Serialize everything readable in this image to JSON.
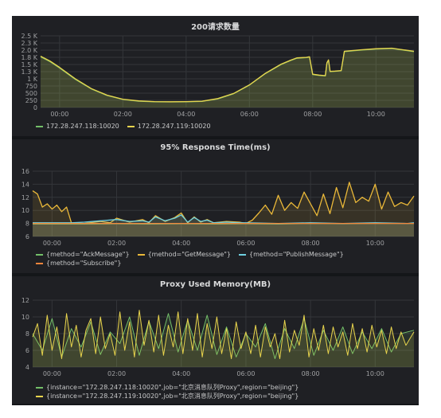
{
  "panels": [
    {
      "title": "200请求数量",
      "legend": [
        {
          "name": "172.28.247.118:10020",
          "color": "#73bf69"
        },
        {
          "name": "172.28.247.119:10020",
          "color": "#e8d44d"
        }
      ]
    },
    {
      "title": "95% Response Time(ms)",
      "legend": [
        {
          "name": "{method=\"AckMessage\"}",
          "color": "#73bf69"
        },
        {
          "name": "{method=\"GetMessage\"}",
          "color": "#eab839"
        },
        {
          "name": "{method=\"PublishMessage\"}",
          "color": "#6ed0e0"
        },
        {
          "name": "{method=\"Subscribe\"}",
          "color": "#ef843c"
        }
      ]
    },
    {
      "title": "Proxy Used Memory(MB)",
      "legend": [
        {
          "name": "{instance=\"172.28.247.118:10020\",job=\"北京消息队列Proxy\",region=\"beijing\"}",
          "color": "#73bf69"
        },
        {
          "name": "{instance=\"172.28.247.119:10020\",job=\"北京消息队列Proxy\",region=\"beijing\"}",
          "color": "#e8d44d"
        }
      ]
    }
  ],
  "chart_data": [
    {
      "type": "line",
      "title": "200请求数量",
      "x_unit": "hour",
      "x_ticks": [
        "00:00",
        "02:00",
        "04:00",
        "06:00",
        "08:00",
        "10:00"
      ],
      "x_range": [
        -0.6,
        11.2
      ],
      "y_ticks": [
        "0",
        "250",
        "500",
        "750",
        "1 K",
        "1.3 K",
        "1.5 K",
        "1.8 K",
        "2.0 K",
        "2.3 K",
        "2.5 K"
      ],
      "y_tick_values": [
        0,
        250,
        500,
        750,
        1000,
        1250,
        1500,
        1750,
        2000,
        2250,
        2500
      ],
      "ylim": [
        0,
        2500
      ],
      "grid": true,
      "legend_position": "bottom-left",
      "series": [
        {
          "name": "172.28.247.118:10020",
          "color": "#73bf69",
          "x": [
            -0.6,
            -0.3,
            0,
            0.5,
            1,
            1.5,
            2,
            2.5,
            3,
            3.5,
            4,
            4.5,
            5,
            5.5,
            6,
            6.5,
            7,
            7.3,
            7.5,
            7.8,
            7.9,
            8.0,
            8.2,
            8.4,
            8.45,
            8.5,
            8.55,
            8.7,
            8.9,
            9.0,
            9.5,
            10,
            10.5,
            11.2
          ],
          "y": [
            1770,
            1600,
            1380,
            980,
            650,
            420,
            280,
            220,
            200,
            195,
            200,
            215,
            300,
            480,
            780,
            1180,
            1500,
            1640,
            1720,
            1740,
            1760,
            1150,
            1120,
            1100,
            1550,
            1650,
            1250,
            1260,
            1280,
            1950,
            2000,
            2040,
            2060,
            1950
          ]
        },
        {
          "name": "172.28.247.119:10020",
          "color": "#e8d44d",
          "x": [
            -0.6,
            -0.3,
            0,
            0.5,
            1,
            1.5,
            2,
            2.5,
            3,
            3.5,
            4,
            4.5,
            5,
            5.5,
            6,
            6.5,
            7,
            7.3,
            7.5,
            7.8,
            7.9,
            8.0,
            8.2,
            8.4,
            8.45,
            8.5,
            8.55,
            8.7,
            8.9,
            9.0,
            9.5,
            10,
            10.5,
            11.2
          ],
          "y": [
            1790,
            1620,
            1400,
            1000,
            660,
            430,
            290,
            230,
            205,
            200,
            205,
            220,
            310,
            490,
            790,
            1190,
            1510,
            1650,
            1730,
            1750,
            1770,
            1160,
            1130,
            1110,
            1560,
            1660,
            1260,
            1270,
            1290,
            1960,
            2010,
            2050,
            2070,
            1960
          ]
        }
      ]
    },
    {
      "type": "line",
      "title": "95% Response Time(ms)",
      "x_unit": "hour",
      "x_ticks": [
        "00:00",
        "02:00",
        "04:00",
        "06:00",
        "08:00",
        "10:00"
      ],
      "x_range": [
        -0.6,
        11.2
      ],
      "y_ticks": [
        "6",
        "8",
        "10",
        "12",
        "14",
        "16"
      ],
      "y_tick_values": [
        6,
        8,
        10,
        12,
        14,
        16
      ],
      "ylim": [
        6,
        16
      ],
      "grid": true,
      "legend_position": "bottom-left",
      "series": [
        {
          "name": "{method=\"AckMessage\"}",
          "color": "#73bf69",
          "x": [
            -0.6,
            1,
            2,
            3,
            4,
            5,
            6,
            7,
            8,
            9,
            10,
            11.2
          ],
          "y": [
            7.9,
            7.9,
            7.95,
            7.9,
            7.95,
            7.9,
            7.95,
            7.9,
            8.0,
            7.95,
            8.0,
            8.0
          ]
        },
        {
          "name": "{method=\"GetMessage\"}",
          "color": "#eab839",
          "x": [
            -0.6,
            -0.45,
            -0.3,
            -0.15,
            0,
            0.15,
            0.3,
            0.45,
            0.6,
            1,
            1.5,
            1.8,
            2,
            2.4,
            2.8,
            3.0,
            3.2,
            3.5,
            3.8,
            4.0,
            4.2,
            4.4,
            4.6,
            4.8,
            5,
            5.4,
            5.8,
            6.0,
            6.2,
            6.4,
            6.6,
            6.8,
            7.0,
            7.2,
            7.4,
            7.6,
            7.8,
            8.0,
            8.2,
            8.4,
            8.6,
            8.8,
            9.0,
            9.2,
            9.4,
            9.6,
            9.8,
            10.0,
            10.2,
            10.4,
            10.6,
            10.8,
            11.0,
            11.2
          ],
          "y": [
            13,
            12.5,
            10.5,
            11,
            10.2,
            10.8,
            9.8,
            10.5,
            8.1,
            8.0,
            8.3,
            8.1,
            8.8,
            8.2,
            8.6,
            8.1,
            9.2,
            8.3,
            8.9,
            9.6,
            8.1,
            9.0,
            8.2,
            8.6,
            8.1,
            8.3,
            8.2,
            8.0,
            8.5,
            9.6,
            10.8,
            9.4,
            12.3,
            10.0,
            11.2,
            10.3,
            12.8,
            11.0,
            9.2,
            12.5,
            9.5,
            13.5,
            10.4,
            14.3,
            11.2,
            12.0,
            11.4,
            14.0,
            10.2,
            12.8,
            10.6,
            11.2,
            10.8,
            12.2
          ]
        },
        {
          "name": "{method=\"PublishMessage\"}",
          "color": "#6ed0e0",
          "x": [
            -0.6,
            0.6,
            1,
            1.5,
            2,
            2.4,
            2.8,
            3.0,
            3.2,
            3.5,
            3.8,
            4.0,
            4.2,
            4.4,
            4.6,
            4.8,
            5,
            5.4,
            5.8,
            6.0,
            7,
            8,
            9,
            10,
            11,
            11.2
          ],
          "y": [
            8.1,
            8.1,
            8.2,
            8.4,
            8.6,
            8.3,
            8.4,
            8.2,
            9.0,
            8.4,
            8.8,
            9.3,
            8.2,
            8.9,
            8.3,
            8.5,
            8.1,
            8.2,
            8.1,
            8.1,
            8.0,
            8.1,
            8.0,
            8.1,
            8.0,
            8.1
          ]
        },
        {
          "name": "{method=\"Subscribe\"}",
          "color": "#ef843c",
          "x": [
            -0.6,
            1,
            2,
            3,
            4,
            5,
            6,
            7,
            8,
            9,
            10,
            11.2
          ],
          "y": [
            8.0,
            8.0,
            8.0,
            8.0,
            8.0,
            8.0,
            8.0,
            8.0,
            8.0,
            8.0,
            8.0,
            8.0
          ]
        }
      ]
    },
    {
      "type": "line",
      "title": "Proxy Used Memory(MB)",
      "x_unit": "hour",
      "x_ticks": [
        "00:00",
        "02:00",
        "04:00",
        "06:00",
        "08:00",
        "10:00"
      ],
      "x_range": [
        -0.6,
        11.2
      ],
      "y_ticks": [
        "4",
        "6",
        "8",
        "10",
        "12"
      ],
      "y_tick_values": [
        4,
        6,
        8,
        10,
        12
      ],
      "ylim": [
        4,
        12
      ],
      "grid": true,
      "legend_position": "bottom-left",
      "series": [
        {
          "name": "{instance=\"172.28.247.118:10020\",job=\"北京消息队列Proxy\",region=\"beijing\"}",
          "color": "#73bf69",
          "x": [
            -0.6,
            -0.3,
            0,
            0.3,
            0.6,
            0.9,
            1.2,
            1.5,
            1.8,
            2.1,
            2.4,
            2.7,
            3.0,
            3.3,
            3.6,
            3.9,
            4.2,
            4.5,
            4.8,
            5.1,
            5.4,
            5.7,
            6.0,
            6.3,
            6.6,
            6.9,
            7.2,
            7.5,
            7.8,
            8.1,
            8.4,
            8.7,
            9.0,
            9.3,
            9.6,
            9.9,
            10.2,
            10.5,
            10.8,
            11.2
          ],
          "y": [
            8.0,
            6.0,
            9.8,
            5.2,
            8.6,
            6.4,
            9.4,
            5.5,
            8.2,
            6.8,
            10.0,
            5.4,
            9.5,
            6.2,
            10.4,
            5.8,
            9.6,
            6.0,
            10.2,
            5.5,
            8.8,
            5.2,
            8.0,
            6.4,
            9.2,
            5.0,
            8.6,
            6.2,
            9.8,
            5.4,
            8.4,
            6.0,
            8.8,
            5.6,
            8.2,
            6.2,
            8.6,
            5.8,
            8.0,
            8.4
          ]
        },
        {
          "name": "{instance=\"172.28.247.119:10020\",job=\"北京消息队列Proxy\",region=\"beijing\"}",
          "color": "#e8d44d",
          "x": [
            -0.6,
            -0.45,
            -0.3,
            -0.15,
            0,
            0.15,
            0.3,
            0.45,
            0.6,
            0.75,
            0.9,
            1.05,
            1.2,
            1.35,
            1.5,
            1.65,
            1.8,
            1.95,
            2.1,
            2.25,
            2.4,
            2.55,
            2.7,
            2.85,
            3.0,
            3.15,
            3.3,
            3.45,
            3.6,
            3.75,
            3.9,
            4.05,
            4.2,
            4.35,
            4.5,
            4.65,
            4.8,
            4.95,
            5.1,
            5.25,
            5.4,
            5.55,
            5.7,
            5.85,
            6.0,
            6.15,
            6.3,
            6.45,
            6.6,
            6.75,
            6.9,
            7.05,
            7.2,
            7.35,
            7.5,
            7.65,
            7.8,
            7.95,
            8.1,
            8.25,
            8.4,
            8.55,
            8.7,
            8.85,
            9.0,
            9.15,
            9.3,
            9.45,
            9.6,
            9.75,
            9.9,
            10.05,
            10.2,
            10.35,
            10.5,
            10.65,
            10.8,
            10.95,
            11.2
          ],
          "y": [
            7.6,
            9.2,
            5.4,
            10.2,
            6.0,
            8.8,
            5.0,
            10.4,
            6.4,
            9.0,
            5.2,
            8.4,
            9.8,
            5.6,
            10.0,
            6.2,
            8.0,
            5.4,
            10.6,
            6.0,
            9.4,
            5.2,
            10.8,
            6.6,
            9.6,
            5.8,
            10.2,
            5.4,
            9.0,
            6.4,
            10.6,
            5.6,
            9.8,
            6.0,
            10.4,
            5.2,
            9.2,
            6.2,
            10.0,
            5.6,
            8.6,
            5.0,
            9.4,
            6.2,
            8.2,
            5.6,
            9.0,
            5.2,
            8.8,
            6.4,
            8.0,
            5.0,
            9.6,
            5.8,
            8.4,
            6.6,
            10.2,
            5.2,
            8.6,
            6.0,
            9.0,
            5.6,
            8.8,
            6.4,
            8.2,
            5.4,
            9.2,
            6.2,
            8.6,
            5.8,
            9.0,
            6.4,
            8.4,
            5.6,
            8.8,
            6.2,
            8.2,
            6.6,
            8.2
          ]
        }
      ]
    }
  ]
}
